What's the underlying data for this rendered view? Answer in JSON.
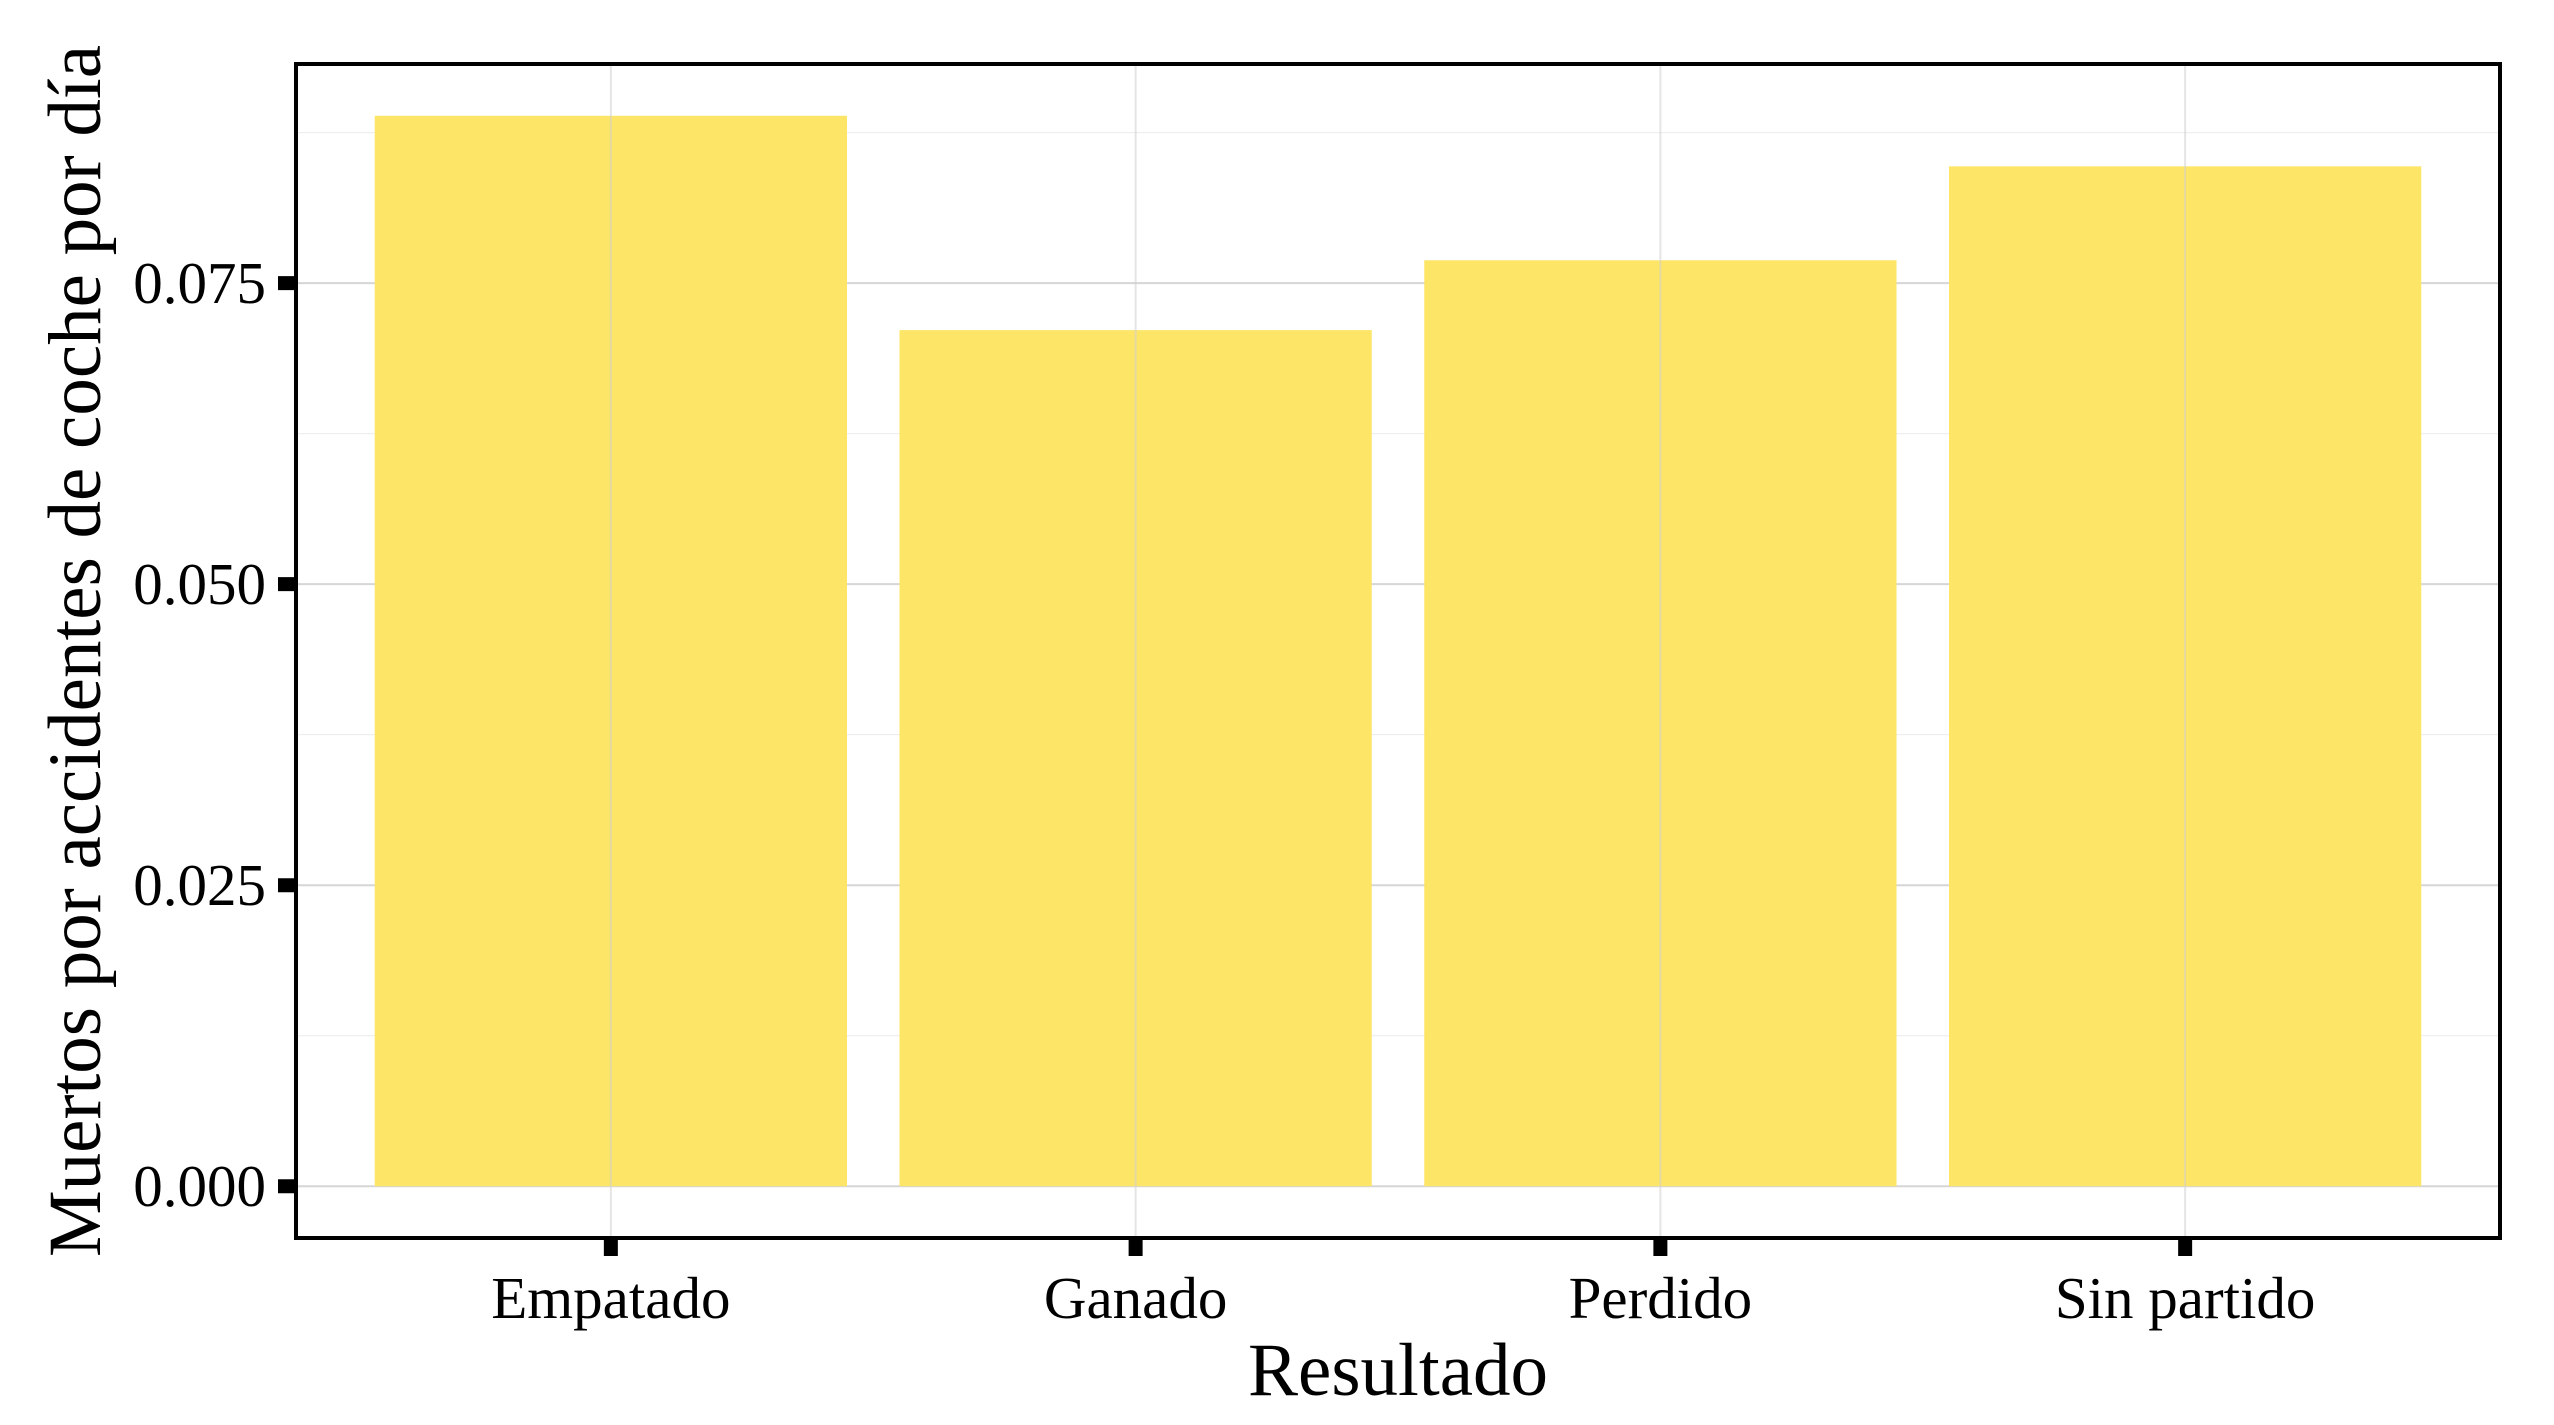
{
  "chart_data": {
    "type": "bar",
    "title": "",
    "xlabel": "Resultado",
    "ylabel": "Muertos por accidentes de coche por día",
    "categories": [
      "Empatado",
      "Ganado",
      "Perdido",
      "Sin partido"
    ],
    "values": [
      0.0889,
      0.0711,
      0.0769,
      0.0847
    ],
    "ylim": [
      -0.0043,
      0.0932
    ],
    "yticks": [
      0.0,
      0.025,
      0.05,
      0.075
    ],
    "ytick_labels": [
      "0.000",
      "0.025",
      "0.050",
      "0.075"
    ],
    "bar_color": "#FDE567",
    "grid": true,
    "legend": "none"
  }
}
